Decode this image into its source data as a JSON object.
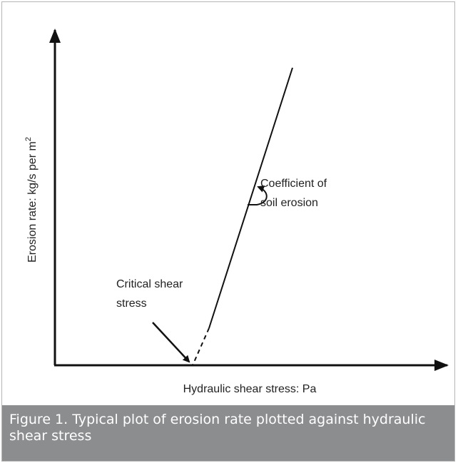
{
  "figure": {
    "y_axis_label": "Erosion rate: kg/s per m",
    "y_axis_label_superscript": "2",
    "x_axis_label": "Hydraulic shear stress: Pa",
    "annotations": [
      {
        "lines": [
          "Coefficient of",
          "soil erosion"
        ]
      },
      {
        "lines": [
          "Critical shear",
          "stress"
        ]
      }
    ],
    "caption": "Figure 1. Typical plot of erosion rate plotted against hydraulic shear stress"
  }
}
